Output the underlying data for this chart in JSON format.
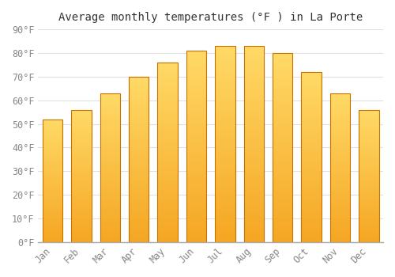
{
  "title": "Average monthly temperatures (°F ) in La Porte",
  "months": [
    "Jan",
    "Feb",
    "Mar",
    "Apr",
    "May",
    "Jun",
    "Jul",
    "Aug",
    "Sep",
    "Oct",
    "Nov",
    "Dec"
  ],
  "values": [
    52,
    56,
    63,
    70,
    76,
    81,
    83,
    83,
    80,
    72,
    63,
    56
  ],
  "bar_color_bottom": "#F5A623",
  "bar_color_top": "#FFD966",
  "bar_edge_color": "#C87000",
  "background_color": "#FFFFFF",
  "grid_color": "#E0E0E0",
  "text_color": "#888888",
  "ylim": [
    0,
    90
  ],
  "yticks": [
    0,
    10,
    20,
    30,
    40,
    50,
    60,
    70,
    80,
    90
  ],
  "title_fontsize": 10,
  "tick_fontsize": 8.5,
  "figsize": [
    5.0,
    3.5
  ],
  "dpi": 100,
  "bar_width": 0.7,
  "gradient_steps": 100
}
